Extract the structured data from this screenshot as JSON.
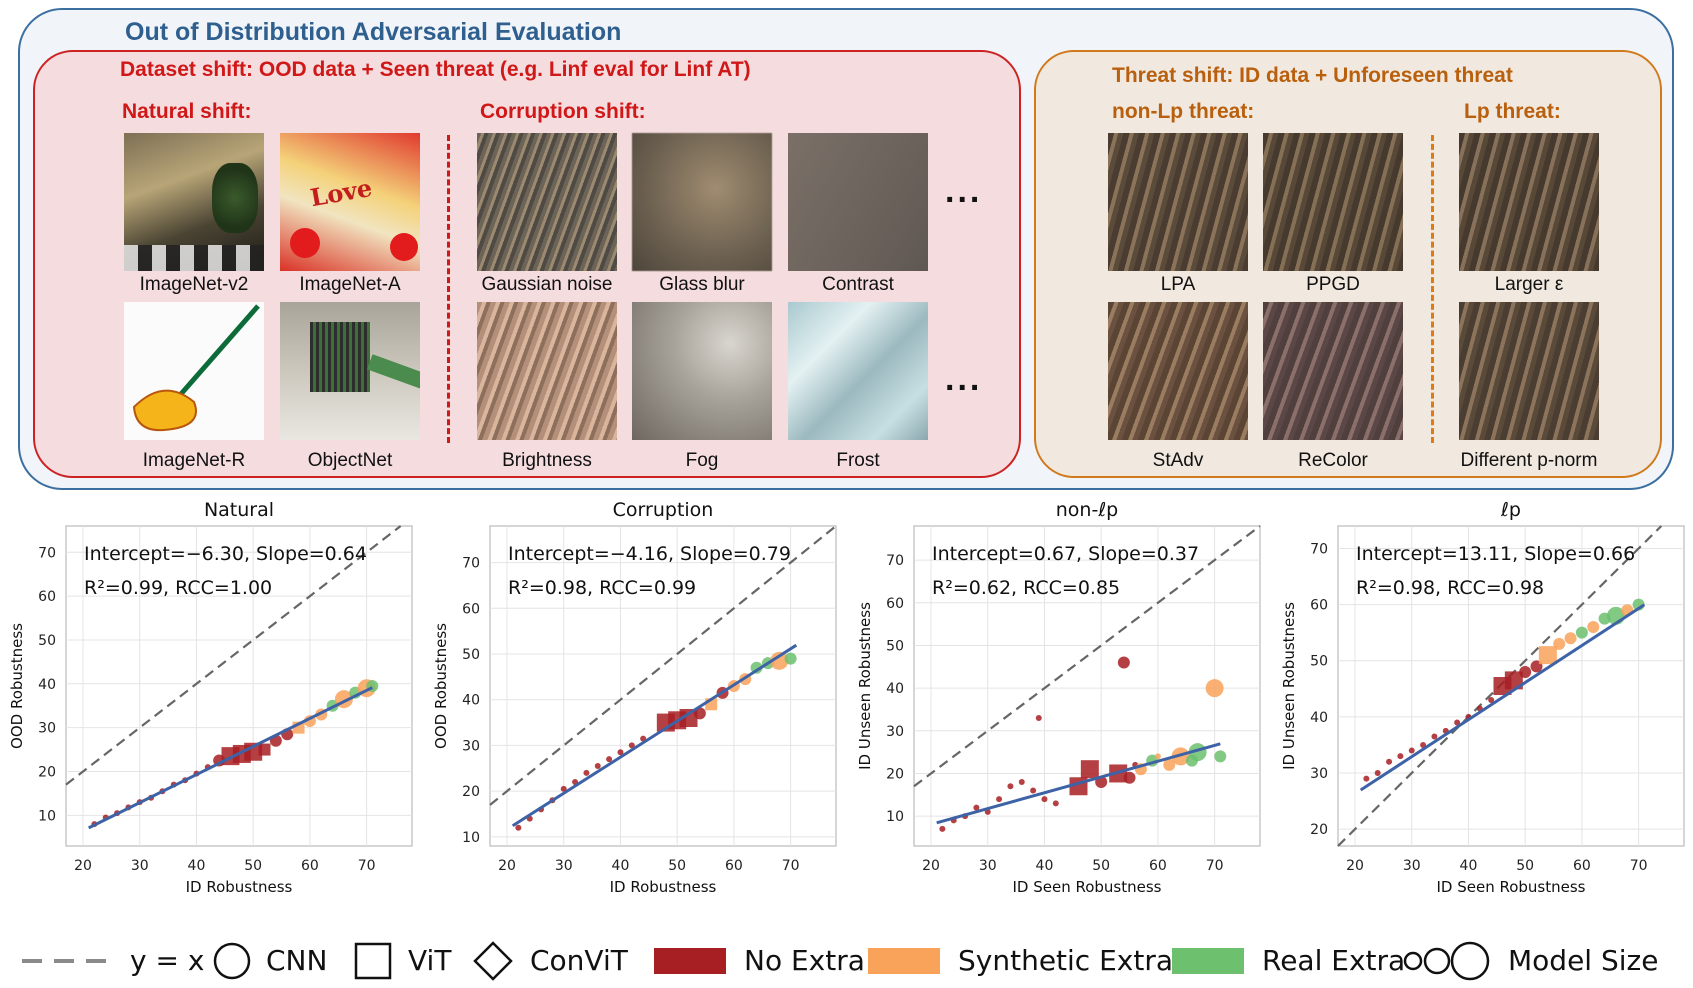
{
  "diagram": {
    "title": "Out of Distribution Adversarial Evaluation",
    "dataset_shift": {
      "title": "Dataset shift: OOD data + Seen threat (e.g. Linf eval for Linf AT)",
      "natural": {
        "title": "Natural shift:",
        "items": [
          "ImageNet-v2",
          "ImageNet-A",
          "ImageNet-R",
          "ObjectNet"
        ]
      },
      "corruption": {
        "title": "Corruption shift:",
        "items": [
          "Gaussian noise",
          "Glass blur",
          "Contrast",
          "Brightness",
          "Fog",
          "Frost"
        ],
        "ellipsis": "..."
      }
    },
    "threat_shift": {
      "title": "Threat shift: ID data + Unforeseen threat",
      "nonlp": {
        "title": "non-Lp threat:",
        "items": [
          "LPA",
          "PPGD",
          "StAdv",
          "ReColor"
        ]
      },
      "lp": {
        "title": "Lp threat:",
        "items": [
          "Larger ε",
          "Different p-norm"
        ]
      }
    }
  },
  "chart_data": [
    {
      "type": "scatter",
      "title": "Natural",
      "xlabel": "ID Robustness",
      "ylabel": "OOD Robustness",
      "xlim": [
        17,
        78
      ],
      "ylim": [
        3,
        76
      ],
      "xticks": [
        "20",
        "30",
        "40",
        "50",
        "60",
        "70"
      ],
      "yticks": [
        "10",
        "20",
        "30",
        "40",
        "50",
        "60",
        "70"
      ],
      "annotation": [
        "Intercept=−6.30, Slope=0.64",
        "R²=0.99, RCC=1.00"
      ],
      "fit": {
        "intercept": -6.3,
        "slope": 0.64,
        "x": [
          21,
          71
        ]
      },
      "points": [
        {
          "x": 22,
          "y": 8,
          "g": "none",
          "m": "cnn",
          "s": 1
        },
        {
          "x": 24,
          "y": 9.5,
          "g": "none",
          "m": "cnn",
          "s": 1
        },
        {
          "x": 26,
          "y": 10.5,
          "g": "none",
          "m": "cnn",
          "s": 1
        },
        {
          "x": 28,
          "y": 11.8,
          "g": "none",
          "m": "cnn",
          "s": 1
        },
        {
          "x": 30,
          "y": 13,
          "g": "none",
          "m": "cnn",
          "s": 1
        },
        {
          "x": 32,
          "y": 14,
          "g": "none",
          "m": "cnn",
          "s": 1
        },
        {
          "x": 34,
          "y": 15.5,
          "g": "none",
          "m": "cnn",
          "s": 1
        },
        {
          "x": 36,
          "y": 17,
          "g": "none",
          "m": "cnn",
          "s": 1
        },
        {
          "x": 38,
          "y": 18,
          "g": "none",
          "m": "cnn",
          "s": 1
        },
        {
          "x": 40,
          "y": 19.5,
          "g": "none",
          "m": "cnn",
          "s": 1
        },
        {
          "x": 42,
          "y": 21,
          "g": "none",
          "m": "cnn",
          "s": 1
        },
        {
          "x": 44,
          "y": 22.5,
          "g": "none",
          "m": "cnn",
          "s": 2
        },
        {
          "x": 46,
          "y": 23.5,
          "g": "none",
          "m": "vit",
          "s": 3
        },
        {
          "x": 48,
          "y": 24,
          "g": "none",
          "m": "vit",
          "s": 3
        },
        {
          "x": 50,
          "y": 24.5,
          "g": "none",
          "m": "vit",
          "s": 3
        },
        {
          "x": 52,
          "y": 25,
          "g": "none",
          "m": "vit",
          "s": 2
        },
        {
          "x": 54,
          "y": 27,
          "g": "none",
          "m": "cnn",
          "s": 2
        },
        {
          "x": 56,
          "y": 28.5,
          "g": "none",
          "m": "cnn",
          "s": 2
        },
        {
          "x": 58,
          "y": 30,
          "g": "syn",
          "m": "vit",
          "s": 2
        },
        {
          "x": 60,
          "y": 31.5,
          "g": "syn",
          "m": "cnn",
          "s": 2
        },
        {
          "x": 62,
          "y": 33,
          "g": "syn",
          "m": "cnn",
          "s": 2
        },
        {
          "x": 64,
          "y": 35,
          "g": "real",
          "m": "cnn",
          "s": 2
        },
        {
          "x": 66,
          "y": 36.5,
          "g": "syn",
          "m": "cnn",
          "s": 3
        },
        {
          "x": 68,
          "y": 38,
          "g": "real",
          "m": "cnn",
          "s": 2
        },
        {
          "x": 70,
          "y": 39,
          "g": "syn",
          "m": "cnn",
          "s": 3
        },
        {
          "x": 71,
          "y": 39.5,
          "g": "real",
          "m": "cnn",
          "s": 2
        }
      ]
    },
    {
      "type": "scatter",
      "title": "Corruption",
      "xlabel": "ID Robustness",
      "ylabel": "OOD Robustness",
      "xlim": [
        17,
        78
      ],
      "ylim": [
        8,
        78
      ],
      "xticks": [
        "20",
        "30",
        "40",
        "50",
        "60",
        "70"
      ],
      "yticks": [
        "10",
        "20",
        "30",
        "40",
        "50",
        "60",
        "70"
      ],
      "annotation": [
        "Intercept=−4.16, Slope=0.79",
        "R²=0.98, RCC=0.99"
      ],
      "fit": {
        "intercept": -4.16,
        "slope": 0.79,
        "x": [
          21,
          71
        ]
      },
      "points": [
        {
          "x": 22,
          "y": 12,
          "g": "none",
          "m": "cnn",
          "s": 1
        },
        {
          "x": 24,
          "y": 14,
          "g": "none",
          "m": "cnn",
          "s": 1
        },
        {
          "x": 26,
          "y": 16,
          "g": "none",
          "m": "cnn",
          "s": 1
        },
        {
          "x": 28,
          "y": 18,
          "g": "none",
          "m": "cnn",
          "s": 1
        },
        {
          "x": 30,
          "y": 20.5,
          "g": "none",
          "m": "cnn",
          "s": 1
        },
        {
          "x": 32,
          "y": 22,
          "g": "none",
          "m": "cnn",
          "s": 1
        },
        {
          "x": 34,
          "y": 24,
          "g": "none",
          "m": "cnn",
          "s": 1
        },
        {
          "x": 36,
          "y": 25.5,
          "g": "none",
          "m": "cnn",
          "s": 1
        },
        {
          "x": 38,
          "y": 27,
          "g": "none",
          "m": "cnn",
          "s": 1
        },
        {
          "x": 40,
          "y": 28.5,
          "g": "none",
          "m": "cnn",
          "s": 1
        },
        {
          "x": 42,
          "y": 30,
          "g": "none",
          "m": "cnn",
          "s": 1
        },
        {
          "x": 44,
          "y": 31.5,
          "g": "none",
          "m": "cnn",
          "s": 1
        },
        {
          "x": 48,
          "y": 35,
          "g": "none",
          "m": "vit",
          "s": 3
        },
        {
          "x": 50,
          "y": 35.5,
          "g": "none",
          "m": "vit",
          "s": 3
        },
        {
          "x": 52,
          "y": 36,
          "g": "none",
          "m": "vit",
          "s": 3
        },
        {
          "x": 54,
          "y": 37,
          "g": "none",
          "m": "cnn",
          "s": 2
        },
        {
          "x": 56,
          "y": 39,
          "g": "syn",
          "m": "vit",
          "s": 2
        },
        {
          "x": 58,
          "y": 41.5,
          "g": "none",
          "m": "cnn",
          "s": 2
        },
        {
          "x": 60,
          "y": 43,
          "g": "syn",
          "m": "cnn",
          "s": 2
        },
        {
          "x": 62,
          "y": 44.5,
          "g": "syn",
          "m": "cnn",
          "s": 2
        },
        {
          "x": 64,
          "y": 47,
          "g": "real",
          "m": "cnn",
          "s": 2
        },
        {
          "x": 66,
          "y": 48,
          "g": "real",
          "m": "cnn",
          "s": 2
        },
        {
          "x": 68,
          "y": 48.5,
          "g": "syn",
          "m": "cnn",
          "s": 3
        },
        {
          "x": 70,
          "y": 49,
          "g": "real",
          "m": "cnn",
          "s": 2
        }
      ]
    },
    {
      "type": "scatter",
      "title": "non-ℓp",
      "xlabel": "ID Seen Robustness",
      "ylabel": "ID Unseen Robustness",
      "xlim": [
        17,
        78
      ],
      "ylim": [
        3,
        78
      ],
      "xticks": [
        "20",
        "30",
        "40",
        "50",
        "60",
        "70"
      ],
      "yticks": [
        "10",
        "20",
        "30",
        "40",
        "50",
        "60",
        "70"
      ],
      "annotation": [
        "Intercept=0.67, Slope=0.37",
        "R²=0.62, RCC=0.85"
      ],
      "fit": {
        "intercept": 0.67,
        "slope": 0.37,
        "x": [
          21,
          71
        ]
      },
      "points": [
        {
          "x": 22,
          "y": 7,
          "g": "none",
          "m": "cnn",
          "s": 1
        },
        {
          "x": 24,
          "y": 9,
          "g": "none",
          "m": "cnn",
          "s": 1
        },
        {
          "x": 26,
          "y": 10,
          "g": "none",
          "m": "cnn",
          "s": 1
        },
        {
          "x": 28,
          "y": 12,
          "g": "none",
          "m": "cnn",
          "s": 1
        },
        {
          "x": 30,
          "y": 11,
          "g": "none",
          "m": "cnn",
          "s": 1
        },
        {
          "x": 32,
          "y": 14,
          "g": "none",
          "m": "cnn",
          "s": 1
        },
        {
          "x": 34,
          "y": 17,
          "g": "none",
          "m": "cnn",
          "s": 1
        },
        {
          "x": 36,
          "y": 18,
          "g": "none",
          "m": "cnn",
          "s": 1
        },
        {
          "x": 38,
          "y": 16,
          "g": "none",
          "m": "cnn",
          "s": 1
        },
        {
          "x": 40,
          "y": 14,
          "g": "none",
          "m": "cnn",
          "s": 1
        },
        {
          "x": 42,
          "y": 13,
          "g": "none",
          "m": "cnn",
          "s": 1
        },
        {
          "x": 39,
          "y": 33,
          "g": "none",
          "m": "cnn",
          "s": 1
        },
        {
          "x": 46,
          "y": 17,
          "g": "none",
          "m": "vit",
          "s": 3
        },
        {
          "x": 48,
          "y": 21,
          "g": "none",
          "m": "vit",
          "s": 3
        },
        {
          "x": 50,
          "y": 18,
          "g": "none",
          "m": "cnn",
          "s": 2
        },
        {
          "x": 53,
          "y": 20,
          "g": "none",
          "m": "vit",
          "s": 3
        },
        {
          "x": 54,
          "y": 46,
          "g": "none",
          "m": "cnn",
          "s": 2
        },
        {
          "x": 55,
          "y": 19,
          "g": "none",
          "m": "cnn",
          "s": 2
        },
        {
          "x": 56,
          "y": 22,
          "g": "none",
          "m": "cnn",
          "s": 1
        },
        {
          "x": 57,
          "y": 21,
          "g": "syn",
          "m": "cnn",
          "s": 2
        },
        {
          "x": 59,
          "y": 23,
          "g": "real",
          "m": "cnn",
          "s": 2
        },
        {
          "x": 60,
          "y": 24,
          "g": "syn",
          "m": "cnn",
          "s": 1
        },
        {
          "x": 62,
          "y": 22,
          "g": "syn",
          "m": "cnn",
          "s": 2
        },
        {
          "x": 64,
          "y": 24,
          "g": "syn",
          "m": "cnn",
          "s": 3
        },
        {
          "x": 66,
          "y": 23,
          "g": "real",
          "m": "cnn",
          "s": 2
        },
        {
          "x": 67,
          "y": 25,
          "g": "real",
          "m": "cnn",
          "s": 3
        },
        {
          "x": 70,
          "y": 40,
          "g": "syn",
          "m": "cnn",
          "s": 3
        },
        {
          "x": 71,
          "y": 24,
          "g": "real",
          "m": "cnn",
          "s": 2
        }
      ]
    },
    {
      "type": "scatter",
      "title": "ℓp",
      "xlabel": "ID Seen Robustness",
      "ylabel": "ID Unseen Robustness",
      "xlim": [
        17,
        78
      ],
      "ylim": [
        17,
        74
      ],
      "xticks": [
        "20",
        "30",
        "40",
        "50",
        "60",
        "70"
      ],
      "yticks": [
        "20",
        "30",
        "40",
        "50",
        "60",
        "70"
      ],
      "annotation": [
        "Intercept=13.11, Slope=0.66",
        "R²=0.98, RCC=0.98"
      ],
      "fit": {
        "intercept": 13.11,
        "slope": 0.66,
        "x": [
          21,
          71
        ]
      },
      "points": [
        {
          "x": 22,
          "y": 29,
          "g": "none",
          "m": "cnn",
          "s": 1
        },
        {
          "x": 24,
          "y": 30,
          "g": "none",
          "m": "cnn",
          "s": 1
        },
        {
          "x": 26,
          "y": 32,
          "g": "none",
          "m": "cnn",
          "s": 1
        },
        {
          "x": 28,
          "y": 33,
          "g": "none",
          "m": "cnn",
          "s": 1
        },
        {
          "x": 30,
          "y": 34,
          "g": "none",
          "m": "cnn",
          "s": 1
        },
        {
          "x": 32,
          "y": 35,
          "g": "none",
          "m": "cnn",
          "s": 1
        },
        {
          "x": 34,
          "y": 36.5,
          "g": "none",
          "m": "cnn",
          "s": 1
        },
        {
          "x": 36,
          "y": 37.5,
          "g": "none",
          "m": "cnn",
          "s": 1
        },
        {
          "x": 38,
          "y": 39,
          "g": "none",
          "m": "cnn",
          "s": 1
        },
        {
          "x": 40,
          "y": 40,
          "g": "none",
          "m": "cnn",
          "s": 1
        },
        {
          "x": 42,
          "y": 41.5,
          "g": "none",
          "m": "cnn",
          "s": 1
        },
        {
          "x": 44,
          "y": 43,
          "g": "none",
          "m": "cnn",
          "s": 1
        },
        {
          "x": 46,
          "y": 45.5,
          "g": "none",
          "m": "vit",
          "s": 3
        },
        {
          "x": 48,
          "y": 46.5,
          "g": "none",
          "m": "vit",
          "s": 3
        },
        {
          "x": 50,
          "y": 48,
          "g": "none",
          "m": "cnn",
          "s": 2
        },
        {
          "x": 52,
          "y": 49,
          "g": "none",
          "m": "cnn",
          "s": 2
        },
        {
          "x": 54,
          "y": 51,
          "g": "syn",
          "m": "vit",
          "s": 3
        },
        {
          "x": 56,
          "y": 53,
          "g": "syn",
          "m": "cnn",
          "s": 2
        },
        {
          "x": 58,
          "y": 54,
          "g": "syn",
          "m": "cnn",
          "s": 2
        },
        {
          "x": 60,
          "y": 55,
          "g": "real",
          "m": "cnn",
          "s": 2
        },
        {
          "x": 62,
          "y": 56,
          "g": "syn",
          "m": "cnn",
          "s": 2
        },
        {
          "x": 64,
          "y": 57.5,
          "g": "real",
          "m": "cnn",
          "s": 2
        },
        {
          "x": 66,
          "y": 58,
          "g": "real",
          "m": "cnn",
          "s": 3
        },
        {
          "x": 68,
          "y": 59,
          "g": "syn",
          "m": "cnn",
          "s": 2
        },
        {
          "x": 70,
          "y": 60,
          "g": "real",
          "m": "cnn",
          "s": 2
        }
      ]
    }
  ],
  "legend": {
    "items": [
      "y = x",
      "CNN",
      "ViT",
      "ConViT",
      "No Extra",
      "Synthetic Extra",
      "Real Extra",
      "Model Size"
    ]
  },
  "colors": {
    "no_extra": "#a81f23",
    "synthetic_extra": "#f9a25a",
    "real_extra": "#6cc06e",
    "fit_line": "#3d63a6",
    "diag_line": "#666666"
  }
}
